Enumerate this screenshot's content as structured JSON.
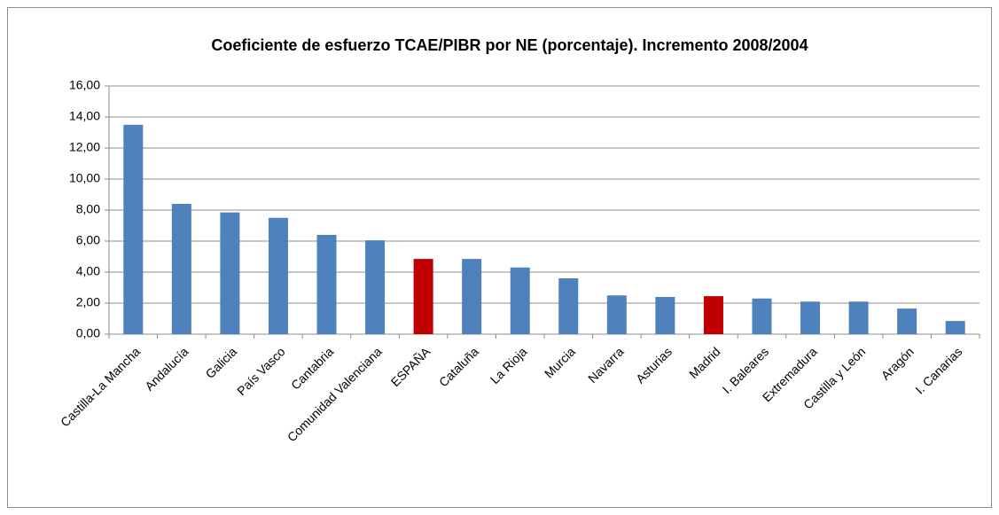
{
  "chart_data": {
    "type": "bar",
    "title": "Coeficiente de esfuerzo TCAE/PIBR por NE  (porcentaje). Incremento 2008/2004",
    "categories": [
      "Castilla-La Mancha",
      "Andalucía",
      "Galicia",
      "País Vasco",
      "Cantabria",
      "Comunidad Valenciana",
      "ESPAÑA",
      "Cataluña",
      "La Rioja",
      "Murcia",
      "Navarra",
      "Asturias",
      "Madrid",
      "I. Baleares",
      "Extremadura",
      "Castilla y León",
      "Aragón",
      "I. Canarias"
    ],
    "values": [
      13.5,
      8.4,
      7.85,
      7.5,
      6.4,
      6.05,
      4.85,
      4.85,
      4.3,
      3.6,
      2.5,
      2.4,
      2.45,
      2.3,
      2.1,
      2.1,
      1.65,
      0.85
    ],
    "colors": [
      "#4f81bd",
      "#4f81bd",
      "#4f81bd",
      "#4f81bd",
      "#4f81bd",
      "#4f81bd",
      "#c00000",
      "#4f81bd",
      "#4f81bd",
      "#4f81bd",
      "#4f81bd",
      "#4f81bd",
      "#c00000",
      "#4f81bd",
      "#4f81bd",
      "#4f81bd",
      "#4f81bd",
      "#4f81bd"
    ],
    "ylim": [
      0,
      16
    ],
    "yticks": [
      {
        "value": 0,
        "label": "0,00"
      },
      {
        "value": 2,
        "label": "2,00"
      },
      {
        "value": 4,
        "label": "4,00"
      },
      {
        "value": 6,
        "label": "6,00"
      },
      {
        "value": 8,
        "label": "8,00"
      },
      {
        "value": 10,
        "label": "10,00"
      },
      {
        "value": 12,
        "label": "12,00"
      },
      {
        "value": 14,
        "label": "14,00"
      },
      {
        "value": 16,
        "label": "16,00"
      }
    ],
    "grid": true
  }
}
